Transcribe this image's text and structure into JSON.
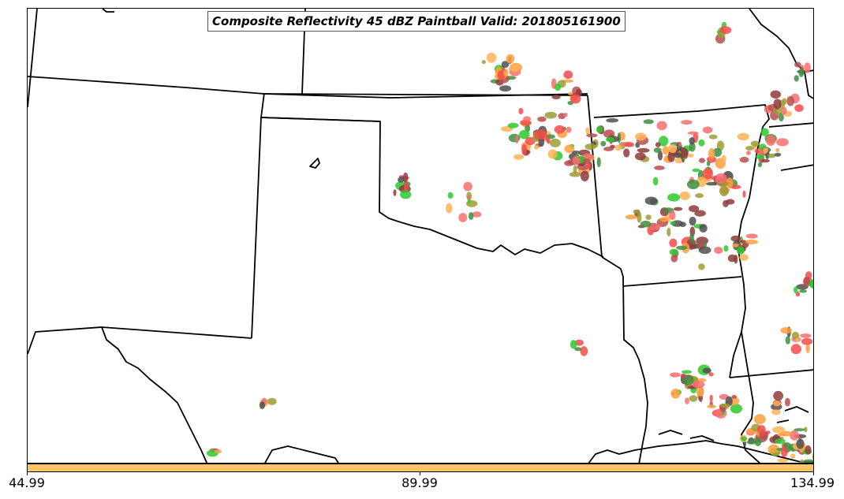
{
  "title": "Composite Reflectivity 45 dBZ Paintball Valid: 201805161900",
  "colorbar": {
    "color": "#FEC565",
    "ticks": [
      "44.99",
      "89.99",
      "134.99"
    ]
  },
  "palette": {
    "red": "#F44B4B",
    "light_red": "#F76E6E",
    "orange": "#FF9F40",
    "light_orange": "#FFB357",
    "rose": "#B84E4E",
    "dark_rose": "#8E3A3A",
    "green": "#2EC92E",
    "dark_green": "#3E8E3E",
    "olive": "#9C9C36",
    "gray": "#4F4F4F",
    "boundary": "#000000"
  },
  "layers": {
    "state_boundaries": "black",
    "coastline": "black"
  }
}
